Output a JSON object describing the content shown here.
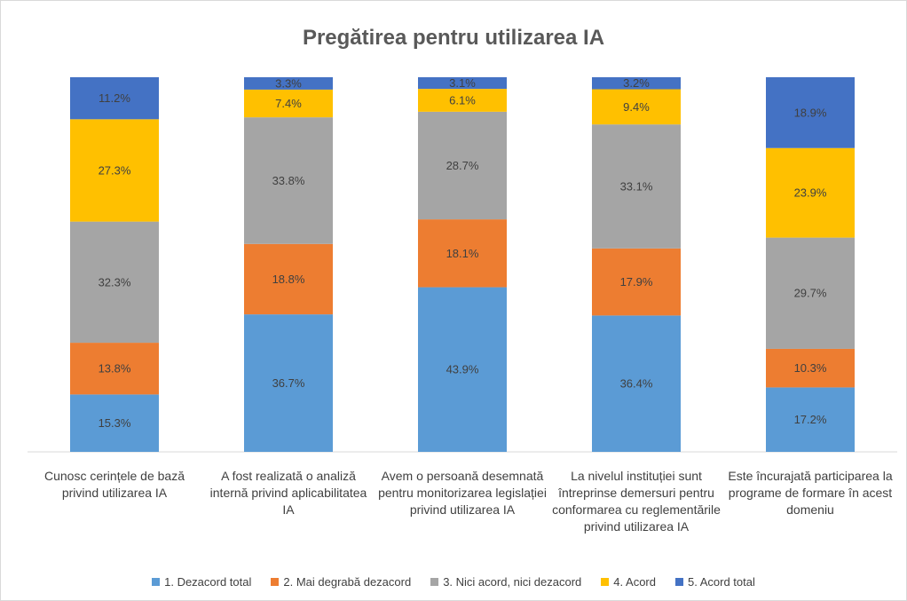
{
  "chart_data": {
    "type": "stacked_bar_100",
    "title": "Pregătirea pentru utilizarea IA",
    "categories": [
      "Cunosc cerințele de bază privind utilizarea IA",
      "A fost realizată o analiză internă privind aplicabilitatea IA",
      "Avem o persoană desemnată pentru monitorizarea legislației privind utilizarea IA",
      "La nivelul instituției sunt întreprinse demersuri pentru conformarea cu reglementările privind utilizarea IA",
      "Este încurajată participarea la programe de formare în acest domeniu"
    ],
    "series": [
      {
        "name": "1. Dezacord total",
        "color": "#5b9bd5",
        "values": [
          15.3,
          36.7,
          43.9,
          36.4,
          17.2
        ],
        "value_labels": [
          "15.3%",
          "36.7%",
          "43.9%",
          "36.4%",
          "17.2%"
        ]
      },
      {
        "name": "2. Mai degrabă dezacord",
        "color": "#ed7d31",
        "values": [
          13.8,
          18.8,
          18.1,
          17.9,
          10.3
        ],
        "value_labels": [
          "13.8%",
          "18.8%",
          "18.1%",
          "17.9%",
          "10.3%"
        ]
      },
      {
        "name": "3. Nici acord, nici dezacord",
        "color": "#a5a5a5",
        "values": [
          32.3,
          33.8,
          28.7,
          33.1,
          29.7
        ],
        "value_labels": [
          "32.3%",
          "33.8%",
          "28.7%",
          "33.1%",
          "29.7%"
        ]
      },
      {
        "name": "4. Acord",
        "color": "#ffc000",
        "values": [
          27.3,
          7.4,
          6.1,
          9.4,
          23.9
        ],
        "value_labels": [
          "27.3%",
          "7.4%",
          "6.1%",
          "9.4%",
          "23.9%"
        ]
      },
      {
        "name": "5. Acord total",
        "color": "#4472c4",
        "values": [
          11.2,
          3.3,
          3.1,
          3.2,
          18.9
        ],
        "value_labels": [
          "11.2%",
          "3.3%",
          "3.1%",
          "3.2%",
          "18.9%"
        ]
      }
    ]
  }
}
